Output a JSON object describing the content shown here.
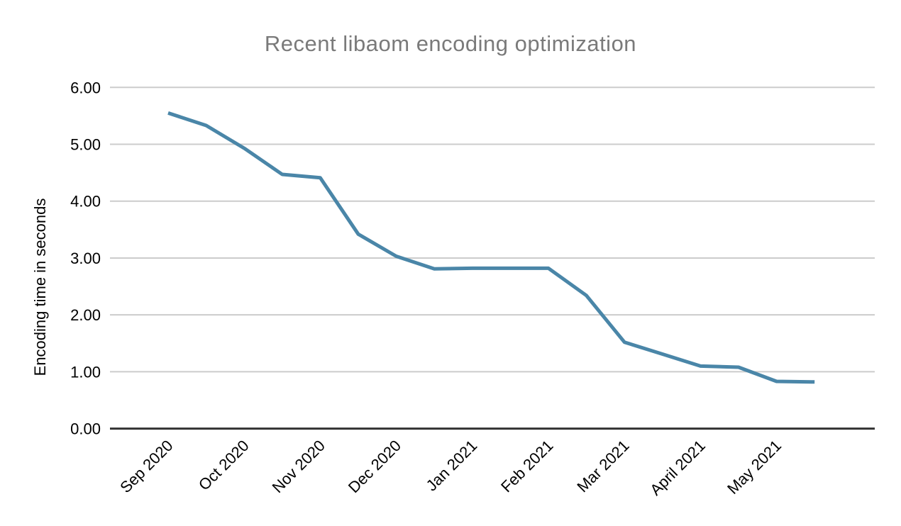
{
  "chart_data": {
    "type": "line",
    "title": "Recent libaom encoding optimization",
    "ylabel": "Encoding time in seconds",
    "xlabel": "",
    "x_tick_labels": [
      "Sep 2020",
      "Oct 2020",
      "Nov 2020",
      "Dec 2020",
      "Jan 2021",
      "Feb 2021",
      "Mar 2021",
      "April 2021",
      "May 2021"
    ],
    "ytick_labels": [
      "0.00",
      "1.00",
      "2.00",
      "3.00",
      "4.00",
      "5.00",
      "6.00"
    ],
    "ylim": [
      0,
      6
    ],
    "grid": "horizontal-only",
    "legend": "none",
    "series": [
      {
        "name": "Encoding time in seconds",
        "x": [
          0,
          0.5,
          1,
          1.5,
          2,
          2.5,
          3,
          3.5,
          4,
          4.5,
          5,
          5.5,
          6,
          6.5,
          7,
          7.5,
          8,
          8.5
        ],
        "x_unit": "months after Sep 2020 (two samples per month)",
        "values": [
          5.55,
          5.33,
          4.93,
          4.47,
          4.41,
          3.42,
          3.03,
          2.81,
          2.82,
          2.82,
          2.82,
          2.34,
          1.52,
          1.31,
          1.1,
          1.08,
          0.83,
          0.82
        ]
      }
    ],
    "colors": {
      "line": "#4a86a8",
      "gridline": "#cccccc",
      "axis_line": "#333333",
      "title_text": "#7a7a7a",
      "tick_text": "#000000",
      "background": "#ffffff"
    }
  }
}
